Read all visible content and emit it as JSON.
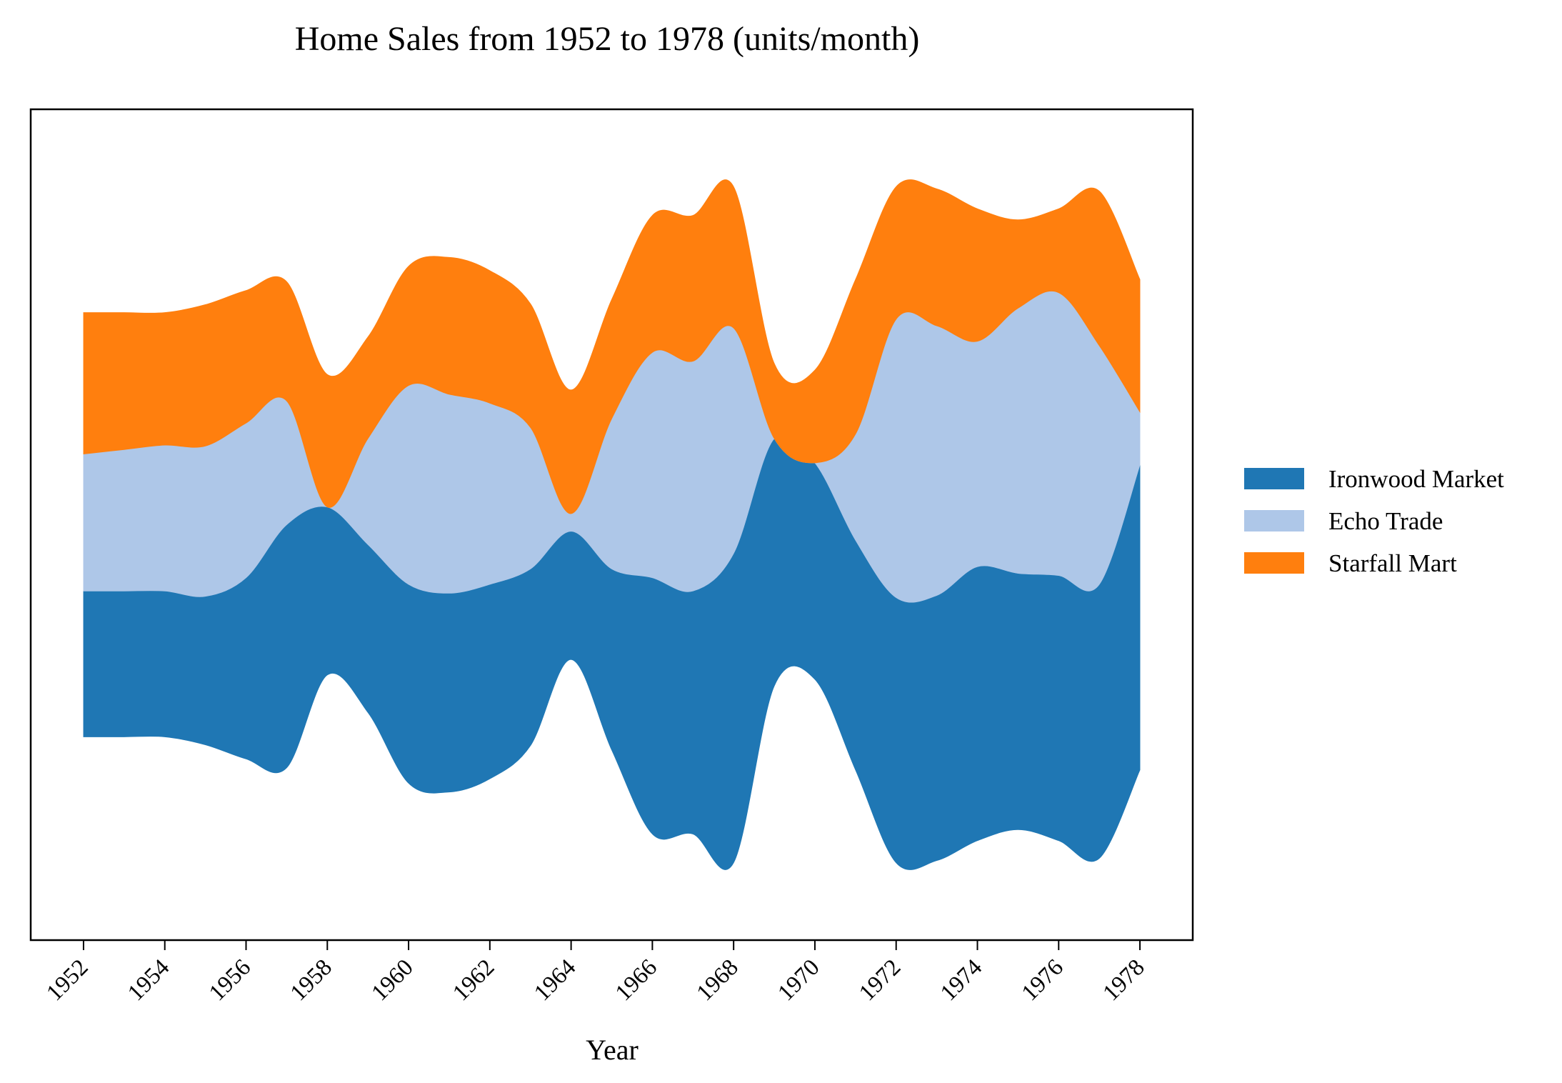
{
  "chart_data": {
    "type": "area",
    "subtype": "streamgraph",
    "title": "Home Sales from 1952 to 1978 (units/month)",
    "xlabel": "Year",
    "ylabel": "",
    "x": [
      1952,
      1953,
      1954,
      1955,
      1956,
      1957,
      1958,
      1959,
      1960,
      1961,
      1962,
      1963,
      1964,
      1965,
      1966,
      1967,
      1968,
      1969,
      1970,
      1971,
      1972,
      1973,
      1974,
      1975,
      1976,
      1977,
      1978
    ],
    "xticks": [
      "1952",
      "1954",
      "1956",
      "1958",
      "1960",
      "1962",
      "1964",
      "1966",
      "1968",
      "1970",
      "1972",
      "1974",
      "1976",
      "1978"
    ],
    "xlim": [
      1950.7,
      1979.3
    ],
    "y_range": [
      -470,
      470
    ],
    "baseline": "centered",
    "series": [
      {
        "name": "Ironwood Market",
        "color": "#1f77b4",
        "values": [
          165,
          165,
          165,
          168,
          205,
          275,
          190,
          190,
          225,
          225,
          220,
          200,
          145,
          205,
          290,
          275,
          350,
          280,
          245,
          260,
          300,
          300,
          310,
          290,
          300,
          310,
          345
        ]
      },
      {
        "name": "Echo Trade",
        "color": "#aec7e8",
        "values": [
          155,
          160,
          165,
          170,
          175,
          140,
          0,
          120,
          225,
          225,
          205,
          160,
          20,
          170,
          255,
          260,
          255,
          0,
          0,
          120,
          315,
          305,
          255,
          300,
          320,
          270,
          60
        ]
      },
      {
        "name": "Starfall Mart",
        "color": "#ff7f0e",
        "values": [
          160,
          155,
          150,
          160,
          150,
          135,
          150,
          115,
          135,
          155,
          150,
          140,
          140,
          135,
          155,
          165,
          160,
          85,
          105,
          175,
          150,
          155,
          150,
          100,
          95,
          175,
          150
        ]
      }
    ],
    "legend": {
      "position": "right",
      "entries": [
        "Ironwood Market",
        "Echo Trade",
        "Starfall Mart"
      ]
    },
    "grid": false
  }
}
